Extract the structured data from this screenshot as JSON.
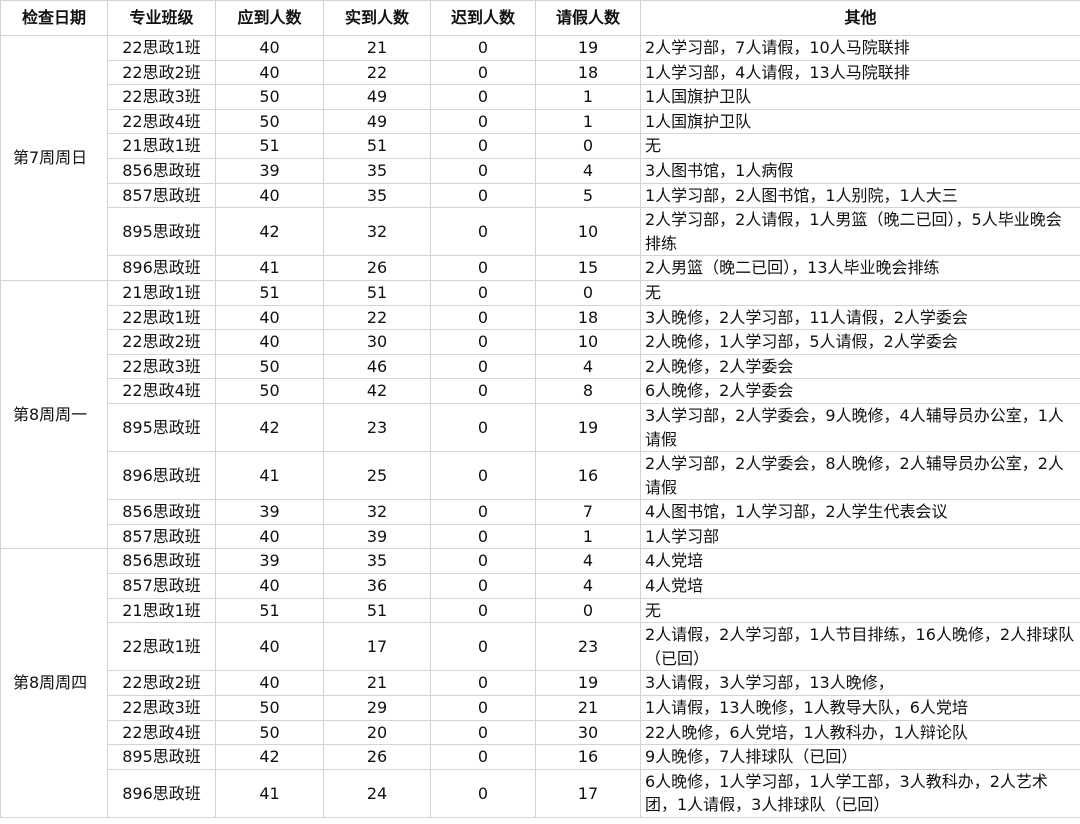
{
  "table": {
    "header": [
      "检查日期",
      "专业班级",
      "应到人数",
      "实到人数",
      "迟到人数",
      "请假人数",
      "其他"
    ],
    "groups": [
      {
        "date": "第7周周日",
        "rows": [
          [
            "22思政1班",
            40,
            21,
            0,
            19,
            "2人学习部，7人请假，10人马院联排"
          ],
          [
            "22思政2班",
            40,
            22,
            0,
            18,
            "1人学习部，4人请假，13人马院联排"
          ],
          [
            "22思政3班",
            50,
            49,
            0,
            1,
            "1人国旗护卫队"
          ],
          [
            "22思政4班",
            50,
            49,
            0,
            1,
            "1人国旗护卫队"
          ],
          [
            "21思政1班",
            51,
            51,
            0,
            0,
            "无"
          ],
          [
            "856思政班",
            39,
            35,
            0,
            4,
            "3人图书馆，1人病假"
          ],
          [
            "857思政班",
            40,
            35,
            0,
            5,
            "1人学习部，2人图书馆，1人别院，1人大三"
          ],
          [
            "895思政班",
            42,
            32,
            0,
            10,
            "2人学习部，2人请假，1人男篮（晚二已回），5人毕业晚会排练"
          ],
          [
            "896思政班",
            41,
            26,
            0,
            15,
            "2人男篮（晚二已回），13人毕业晚会排练"
          ]
        ]
      },
      {
        "date": "第8周周一",
        "rows": [
          [
            "21思政1班",
            51,
            51,
            0,
            0,
            "无"
          ],
          [
            "22思政1班",
            40,
            22,
            0,
            18,
            "3人晚修，2人学习部，11人请假，2人学委会"
          ],
          [
            "22思政2班",
            40,
            30,
            0,
            10,
            "2人晚修，1人学习部，5人请假，2人学委会"
          ],
          [
            "22思政3班",
            50,
            46,
            0,
            4,
            "2人晚修，2人学委会"
          ],
          [
            "22思政4班",
            50,
            42,
            0,
            8,
            "6人晚修，2人学委会"
          ],
          [
            "895思政班",
            42,
            23,
            0,
            19,
            "3人学习部，2人学委会，9人晚修，4人辅导员办公室，1人请假"
          ],
          [
            "896思政班",
            41,
            25,
            0,
            16,
            "2人学习部，2人学委会，8人晚修，2人辅导员办公室，2人请假"
          ],
          [
            "856思政班",
            39,
            32,
            0,
            7,
            "4人图书馆，1人学习部，2人学生代表会议"
          ],
          [
            "857思政班",
            40,
            39,
            0,
            1,
            "1人学习部"
          ]
        ]
      },
      {
        "date": "第8周周四",
        "rows": [
          [
            "856思政班",
            39,
            35,
            0,
            4,
            "4人党培"
          ],
          [
            "857思政班",
            40,
            36,
            0,
            4,
            "4人党培"
          ],
          [
            "21思政1班",
            51,
            51,
            0,
            0,
            "无"
          ],
          [
            "22思政1班",
            40,
            17,
            0,
            23,
            "2人请假，2人学习部，1人节目排练，16人晚修，2人排球队（已回）"
          ],
          [
            "22思政2班",
            40,
            21,
            0,
            19,
            "3人请假，3人学习部，13人晚修，"
          ],
          [
            "22思政3班",
            50,
            29,
            0,
            21,
            "1人请假，13人晚修，1人教导大队，6人党培"
          ],
          [
            "22思政4班",
            50,
            20,
            0,
            30,
            "22人晚修，6人党培，1人教科办，1人辩论队"
          ],
          [
            "895思政班",
            42,
            26,
            0,
            16,
            "9人晚修，7人排球队（已回）"
          ],
          [
            "896思政班",
            41,
            24,
            0,
            17,
            "6人晚修，1人学习部，1人学工部，3人教科办，2人艺术团，1人请假，3人排球队（已回）"
          ]
        ]
      }
    ]
  }
}
